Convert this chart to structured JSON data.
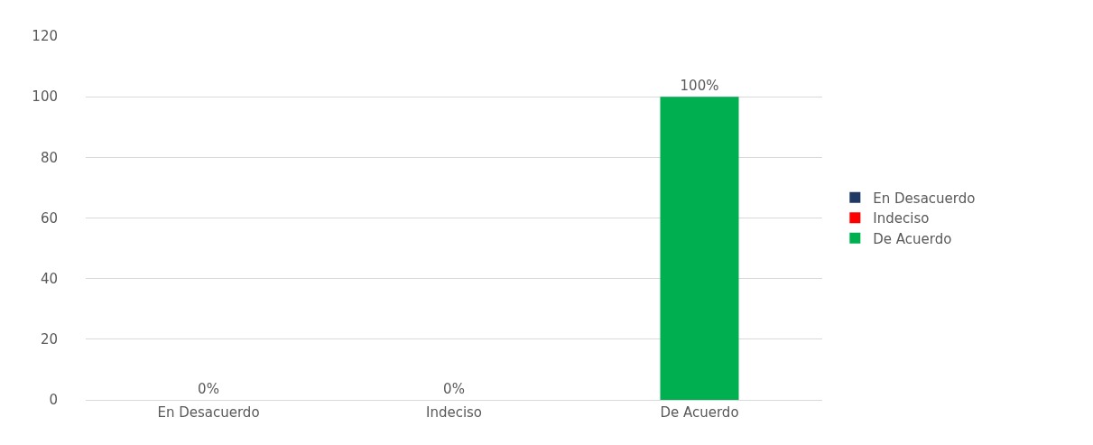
{
  "chart_data": {
    "type": "bar",
    "categories": [
      "En Desacuerdo",
      "Indeciso",
      "De Acuerdo"
    ],
    "series": [
      {
        "name": "En Desacuerdo",
        "color": "#1f3864",
        "values": [
          0,
          null,
          null
        ],
        "value_labels": [
          "0%",
          null,
          null
        ]
      },
      {
        "name": "Indeciso",
        "color": "#ff0000",
        "values": [
          null,
          0,
          null
        ],
        "value_labels": [
          null,
          "0%",
          null
        ]
      },
      {
        "name": "De Acuerdo",
        "color": "#00b050",
        "values": [
          null,
          null,
          100
        ],
        "value_labels": [
          null,
          null,
          "100%"
        ]
      }
    ],
    "ylim": [
      0,
      120
    ],
    "yticks": [
      0,
      20,
      40,
      60,
      80,
      100,
      120
    ],
    "grid": "y",
    "legend": "right"
  }
}
